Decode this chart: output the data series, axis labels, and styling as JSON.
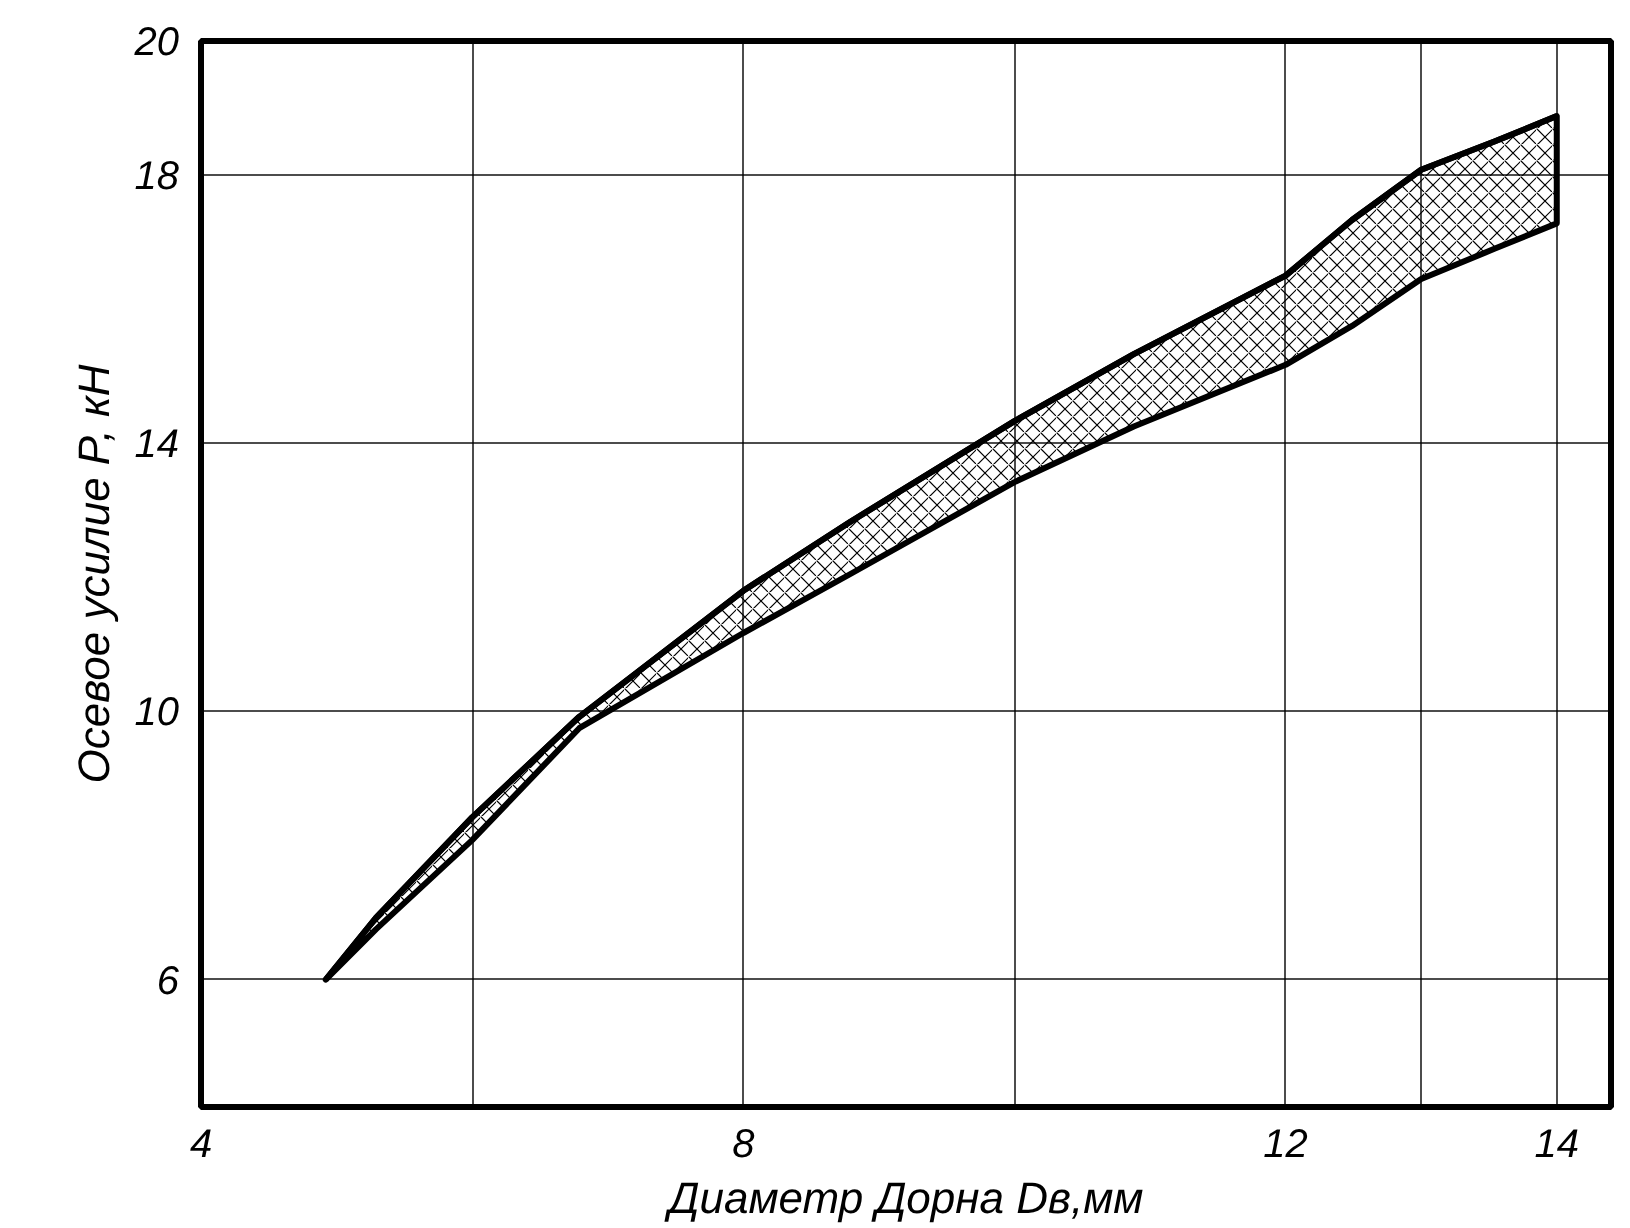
{
  "chart_data": {
    "type": "line",
    "xlabel": "Диаметр Дорна Dв,мм",
    "ylabel": "Осевое усилие P, кН",
    "x": [
      4.92,
      5.29,
      6.0,
      6.79,
      8.0,
      8.79,
      10.0,
      10.88,
      12.0,
      12.49,
      13.0,
      13.54,
      14.0
    ],
    "series": [
      {
        "color": "#000000",
        "values": [
          6.0,
          6.92,
          8.42,
          9.92,
          11.8,
          12.83,
          14.33,
          15.33,
          16.5,
          17.33,
          18.08,
          18.5,
          18.88
        ],
        "lower": [
          6.0,
          6.75,
          8.08,
          9.75,
          11.17,
          12.05,
          13.42,
          14.25,
          15.17,
          15.75,
          16.45,
          16.9,
          17.28
        ],
        "upper": [
          6.0,
          6.92,
          8.42,
          9.92,
          11.8,
          12.83,
          14.33,
          15.33,
          16.5,
          17.33,
          18.08,
          18.5,
          18.88
        ]
      }
    ],
    "xlim": [
      4,
      14.4
    ],
    "ylim": [
      4.1,
      20
    ],
    "xticks": [
      4,
      {
        "value": 6,
        "label": null
      },
      8,
      {
        "value": 10,
        "label": null
      },
      12,
      {
        "value": 13,
        "label": null
      },
      14
    ],
    "yticks": [
      6,
      10,
      14,
      18,
      20
    ],
    "grid": true
  }
}
